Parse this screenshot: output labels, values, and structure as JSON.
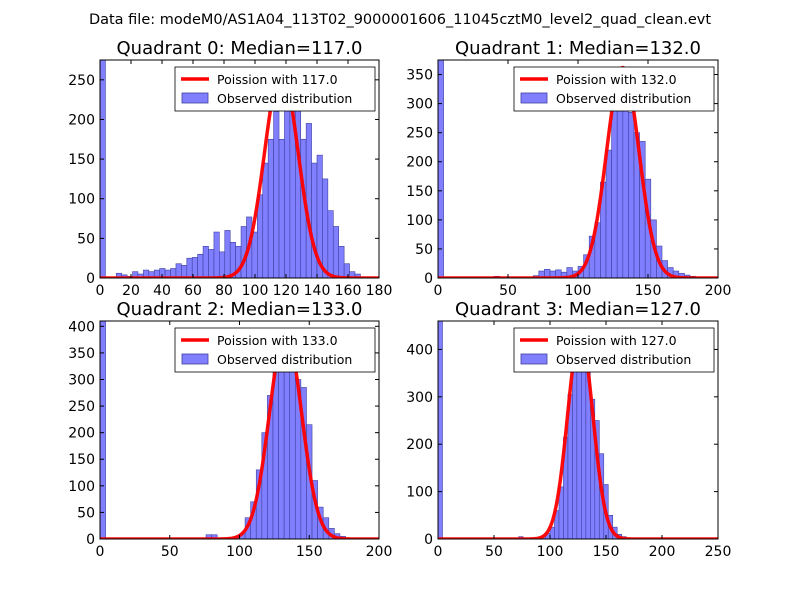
{
  "suptitle": "Data file: modeM0/AS1A04_113T02_9000001606_11045cztM0_level2_quad_clean.evt",
  "colors": {
    "bar_fill": "#7f7fff",
    "bar_edge": "#4040a0",
    "curve": "#ff0000",
    "axis": "#000000"
  },
  "chart_data": [
    {
      "type": "bar",
      "title": "Quadrant 0: Median=117.0",
      "xlim": [
        0,
        180
      ],
      "ylim": [
        0,
        275
      ],
      "xticks": [
        0,
        20,
        40,
        60,
        80,
        100,
        120,
        140,
        160,
        180
      ],
      "yticks": [
        0,
        50,
        100,
        150,
        200,
        250
      ],
      "legend": {
        "curve_label": "Poission with 117.0",
        "bar_label": "Observed distribution",
        "loc": "upper right"
      },
      "bin_width": 3.5,
      "bins": [
        {
          "x": 0,
          "h": 275
        },
        {
          "x": 10.5,
          "h": 6
        },
        {
          "x": 14,
          "h": 4
        },
        {
          "x": 17.5,
          "h": 2
        },
        {
          "x": 21,
          "h": 8
        },
        {
          "x": 24.5,
          "h": 5
        },
        {
          "x": 28,
          "h": 10
        },
        {
          "x": 31.5,
          "h": 8
        },
        {
          "x": 35,
          "h": 10
        },
        {
          "x": 38.5,
          "h": 12
        },
        {
          "x": 42,
          "h": 10
        },
        {
          "x": 45.5,
          "h": 12
        },
        {
          "x": 49,
          "h": 18
        },
        {
          "x": 52.5,
          "h": 16
        },
        {
          "x": 56,
          "h": 25
        },
        {
          "x": 59.5,
          "h": 26
        },
        {
          "x": 63,
          "h": 30
        },
        {
          "x": 66.5,
          "h": 40
        },
        {
          "x": 70,
          "h": 36
        },
        {
          "x": 73.5,
          "h": 58
        },
        {
          "x": 77,
          "h": 33
        },
        {
          "x": 80.5,
          "h": 60
        },
        {
          "x": 84,
          "h": 45
        },
        {
          "x": 87.5,
          "h": 40
        },
        {
          "x": 91,
          "h": 65
        },
        {
          "x": 94.5,
          "h": 77
        },
        {
          "x": 98,
          "h": 58
        },
        {
          "x": 101.5,
          "h": 105
        },
        {
          "x": 105,
          "h": 145
        },
        {
          "x": 108.5,
          "h": 175
        },
        {
          "x": 112,
          "h": 210
        },
        {
          "x": 115.5,
          "h": 175
        },
        {
          "x": 119,
          "h": 225
        },
        {
          "x": 122.5,
          "h": 250
        },
        {
          "x": 126,
          "h": 230
        },
        {
          "x": 129.5,
          "h": 175
        },
        {
          "x": 133,
          "h": 195
        },
        {
          "x": 136.5,
          "h": 145
        },
        {
          "x": 140,
          "h": 155
        },
        {
          "x": 143.5,
          "h": 125
        },
        {
          "x": 147,
          "h": 85
        },
        {
          "x": 150.5,
          "h": 65
        },
        {
          "x": 154,
          "h": 40
        },
        {
          "x": 157.5,
          "h": 18
        },
        {
          "x": 161,
          "h": 8
        },
        {
          "x": 164.5,
          "h": 5
        }
      ],
      "poisson_mean": 117.0,
      "curve_peak": 262
    },
    {
      "type": "bar",
      "title": "Quadrant 1: Median=132.0",
      "xlim": [
        0,
        200
      ],
      "ylim": [
        0,
        375
      ],
      "xticks": [
        0,
        50,
        100,
        150,
        200
      ],
      "yticks": [
        0,
        50,
        100,
        150,
        200,
        250,
        300,
        350
      ],
      "legend": {
        "curve_label": "Poission with 132.0",
        "bar_label": "Observed distribution",
        "loc": "upper right"
      },
      "bin_width": 4,
      "bins": [
        {
          "x": 0,
          "h": 375
        },
        {
          "x": 40,
          "h": 3
        },
        {
          "x": 68,
          "h": 4
        },
        {
          "x": 72,
          "h": 12
        },
        {
          "x": 76,
          "h": 15
        },
        {
          "x": 80,
          "h": 12
        },
        {
          "x": 84,
          "h": 14
        },
        {
          "x": 88,
          "h": 10
        },
        {
          "x": 92,
          "h": 18
        },
        {
          "x": 96,
          "h": 12
        },
        {
          "x": 100,
          "h": 20
        },
        {
          "x": 104,
          "h": 40
        },
        {
          "x": 108,
          "h": 72
        },
        {
          "x": 112,
          "h": 95
        },
        {
          "x": 116,
          "h": 165
        },
        {
          "x": 120,
          "h": 220
        },
        {
          "x": 124,
          "h": 295
        },
        {
          "x": 128,
          "h": 315
        },
        {
          "x": 132,
          "h": 330
        },
        {
          "x": 136,
          "h": 285
        },
        {
          "x": 140,
          "h": 250
        },
        {
          "x": 144,
          "h": 235
        },
        {
          "x": 148,
          "h": 170
        },
        {
          "x": 152,
          "h": 100
        },
        {
          "x": 156,
          "h": 55
        },
        {
          "x": 160,
          "h": 30
        },
        {
          "x": 164,
          "h": 18
        },
        {
          "x": 168,
          "h": 12
        },
        {
          "x": 172,
          "h": 8
        },
        {
          "x": 176,
          "h": 5
        },
        {
          "x": 180,
          "h": 3
        }
      ],
      "poisson_mean": 132.0,
      "curve_peak": 362
    },
    {
      "type": "bar",
      "title": "Quadrant 2: Median=133.0",
      "xlim": [
        0,
        200
      ],
      "ylim": [
        0,
        410
      ],
      "xticks": [
        0,
        50,
        100,
        150,
        200
      ],
      "yticks": [
        0,
        50,
        100,
        150,
        200,
        250,
        300,
        350,
        400
      ],
      "legend": {
        "curve_label": "Poission with 133.0",
        "bar_label": "Observed distribution",
        "loc": "upper right"
      },
      "bin_width": 4,
      "bins": [
        {
          "x": 0,
          "h": 410
        },
        {
          "x": 76,
          "h": 8
        },
        {
          "x": 80,
          "h": 8
        },
        {
          "x": 96,
          "h": 5
        },
        {
          "x": 100,
          "h": 10
        },
        {
          "x": 104,
          "h": 40
        },
        {
          "x": 108,
          "h": 70
        },
        {
          "x": 112,
          "h": 130
        },
        {
          "x": 116,
          "h": 200
        },
        {
          "x": 120,
          "h": 270
        },
        {
          "x": 124,
          "h": 360
        },
        {
          "x": 128,
          "h": 330
        },
        {
          "x": 132,
          "h": 390
        },
        {
          "x": 136,
          "h": 365
        },
        {
          "x": 140,
          "h": 300
        },
        {
          "x": 144,
          "h": 285
        },
        {
          "x": 148,
          "h": 215
        },
        {
          "x": 152,
          "h": 110
        },
        {
          "x": 156,
          "h": 60
        },
        {
          "x": 160,
          "h": 40
        },
        {
          "x": 164,
          "h": 20
        },
        {
          "x": 168,
          "h": 10
        },
        {
          "x": 172,
          "h": 5
        }
      ],
      "poisson_mean": 133.0,
      "curve_peak": 390
    },
    {
      "type": "bar",
      "title": "Quadrant 3: Median=127.0",
      "xlim": [
        0,
        250
      ],
      "ylim": [
        0,
        460
      ],
      "xticks": [
        0,
        50,
        100,
        150,
        200,
        250
      ],
      "yticks": [
        0,
        100,
        200,
        300,
        400
      ],
      "legend": {
        "curve_label": "Poission with 127.0",
        "bar_label": "Observed distribution",
        "loc": "upper right"
      },
      "bin_width": 4,
      "bins": [
        {
          "x": 0,
          "h": 460
        },
        {
          "x": 72,
          "h": 5
        },
        {
          "x": 92,
          "h": 5
        },
        {
          "x": 96,
          "h": 12
        },
        {
          "x": 100,
          "h": 25
        },
        {
          "x": 104,
          "h": 60
        },
        {
          "x": 108,
          "h": 110
        },
        {
          "x": 112,
          "h": 215
        },
        {
          "x": 116,
          "h": 305
        },
        {
          "x": 120,
          "h": 390
        },
        {
          "x": 124,
          "h": 440
        },
        {
          "x": 128,
          "h": 380
        },
        {
          "x": 132,
          "h": 400
        },
        {
          "x": 136,
          "h": 295
        },
        {
          "x": 140,
          "h": 250
        },
        {
          "x": 144,
          "h": 180
        },
        {
          "x": 148,
          "h": 115
        },
        {
          "x": 152,
          "h": 50
        },
        {
          "x": 156,
          "h": 25
        },
        {
          "x": 160,
          "h": 10
        },
        {
          "x": 164,
          "h": 5
        }
      ],
      "poisson_mean": 127.0,
      "curve_peak": 432
    }
  ]
}
